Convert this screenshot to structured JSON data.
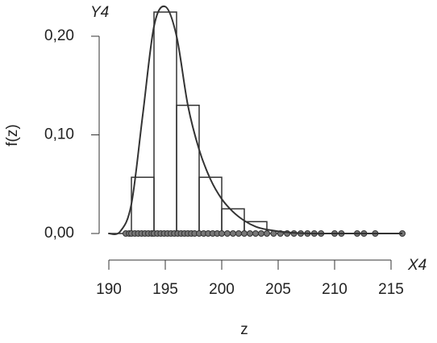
{
  "chart_data": {
    "type": "histogram",
    "title": "Y4",
    "x_corner_label": "X4",
    "xlabel": "z",
    "ylabel": "f(z)",
    "bins": [
      192,
      194,
      196,
      198,
      200,
      202,
      204
    ],
    "values": [
      0.057,
      0.2245,
      0.13,
      0.057,
      0.025,
      0.012
    ],
    "density": {
      "x": [
        190,
        191,
        192,
        193,
        194,
        195,
        196,
        197,
        198,
        199,
        200,
        201,
        202,
        203,
        204,
        206,
        208,
        210,
        212,
        216
      ],
      "values": [
        0,
        0.002,
        0.03,
        0.12,
        0.21,
        0.23,
        0.2,
        0.13,
        0.085,
        0.055,
        0.035,
        0.022,
        0.013,
        0.007,
        0.004,
        0.001,
        0,
        0,
        0,
        0
      ]
    },
    "rug": [
      191.5,
      191.8,
      192,
      192.3,
      192.6,
      192.9,
      193.2,
      193.5,
      193.8,
      194,
      194.3,
      194.6,
      194.9,
      195.2,
      195.5,
      195.8,
      196.1,
      196.4,
      196.7,
      197,
      197.3,
      197.6,
      198,
      198.4,
      198.8,
      199.2,
      199.6,
      200,
      200.5,
      201,
      201.5,
      202,
      202.5,
      203,
      203.5,
      204,
      204.6,
      205.2,
      205.8,
      206.4,
      207,
      207.6,
      208.2,
      208.8,
      210,
      210.6,
      212,
      212.6,
      213.6,
      216
    ],
    "color": "#333333",
    "xlim": [
      190,
      215
    ],
    "xticks": [
      190,
      195,
      200,
      205,
      210,
      215
    ],
    "ylim": [
      0,
      0.2
    ],
    "yticks": [
      {
        "value": 0,
        "label": "0,00"
      },
      {
        "value": 0.1,
        "label": "0,10"
      },
      {
        "value": 0.2,
        "label": "0,20"
      }
    ]
  }
}
